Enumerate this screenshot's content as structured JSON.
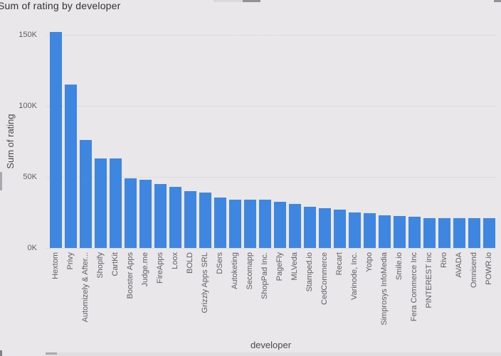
{
  "title": "Sum of rating by developer",
  "colors": {
    "bar": "#3f86e0",
    "background": "#e9e7ea",
    "gridline": "#d2d0d4",
    "tick_label": "#605e62",
    "title_text": "#323232",
    "axis_title_text": "#4a4a4a",
    "scrollbar_thumb": "#939196",
    "scrollbar_track": "#e0dee1"
  },
  "chart_data": {
    "type": "bar",
    "title": "Sum of rating by developer",
    "xlabel": "developer",
    "ylabel": "Sum of rating",
    "ylim": [
      0,
      150000
    ],
    "grid": "horizontal dotted",
    "legend": "none",
    "x_label_rotation": -90,
    "yticks": [
      {
        "value": 0,
        "label": "0K"
      },
      {
        "value": 50000,
        "label": "50K"
      },
      {
        "value": 100000,
        "label": "100K"
      },
      {
        "value": 150000,
        "label": "150K"
      }
    ],
    "categories": [
      "Hextom",
      "Privy",
      "Automizely & After...",
      "Shopify",
      "CartKit",
      "Booster Apps",
      "Judge.me",
      "FireApps",
      "Loox",
      "BOLD",
      "Grizzly Apps SRL",
      "DSers",
      "Autoketing",
      "Secomapp",
      "ShopPad Inc.",
      "PageFly",
      "MLVeda",
      "Stamped.io",
      "CedCommerce",
      "Recart",
      "Varinode, Inc.",
      "Yotpo",
      "Simprosys InfoMedia",
      "Smile.io",
      "Fera Commerce Inc",
      "PINTEREST inc",
      "Rivo",
      "AVADA",
      "Omnisend",
      "POWR.io"
    ],
    "values": [
      152000,
      115000,
      76000,
      63000,
      63000,
      49000,
      48000,
      45000,
      43000,
      40000,
      39000,
      35500,
      34000,
      34000,
      34000,
      32500,
      31000,
      29000,
      28000,
      27000,
      25000,
      24500,
      23000,
      22500,
      22000,
      21000,
      21000,
      21000,
      21000,
      21000
    ]
  }
}
